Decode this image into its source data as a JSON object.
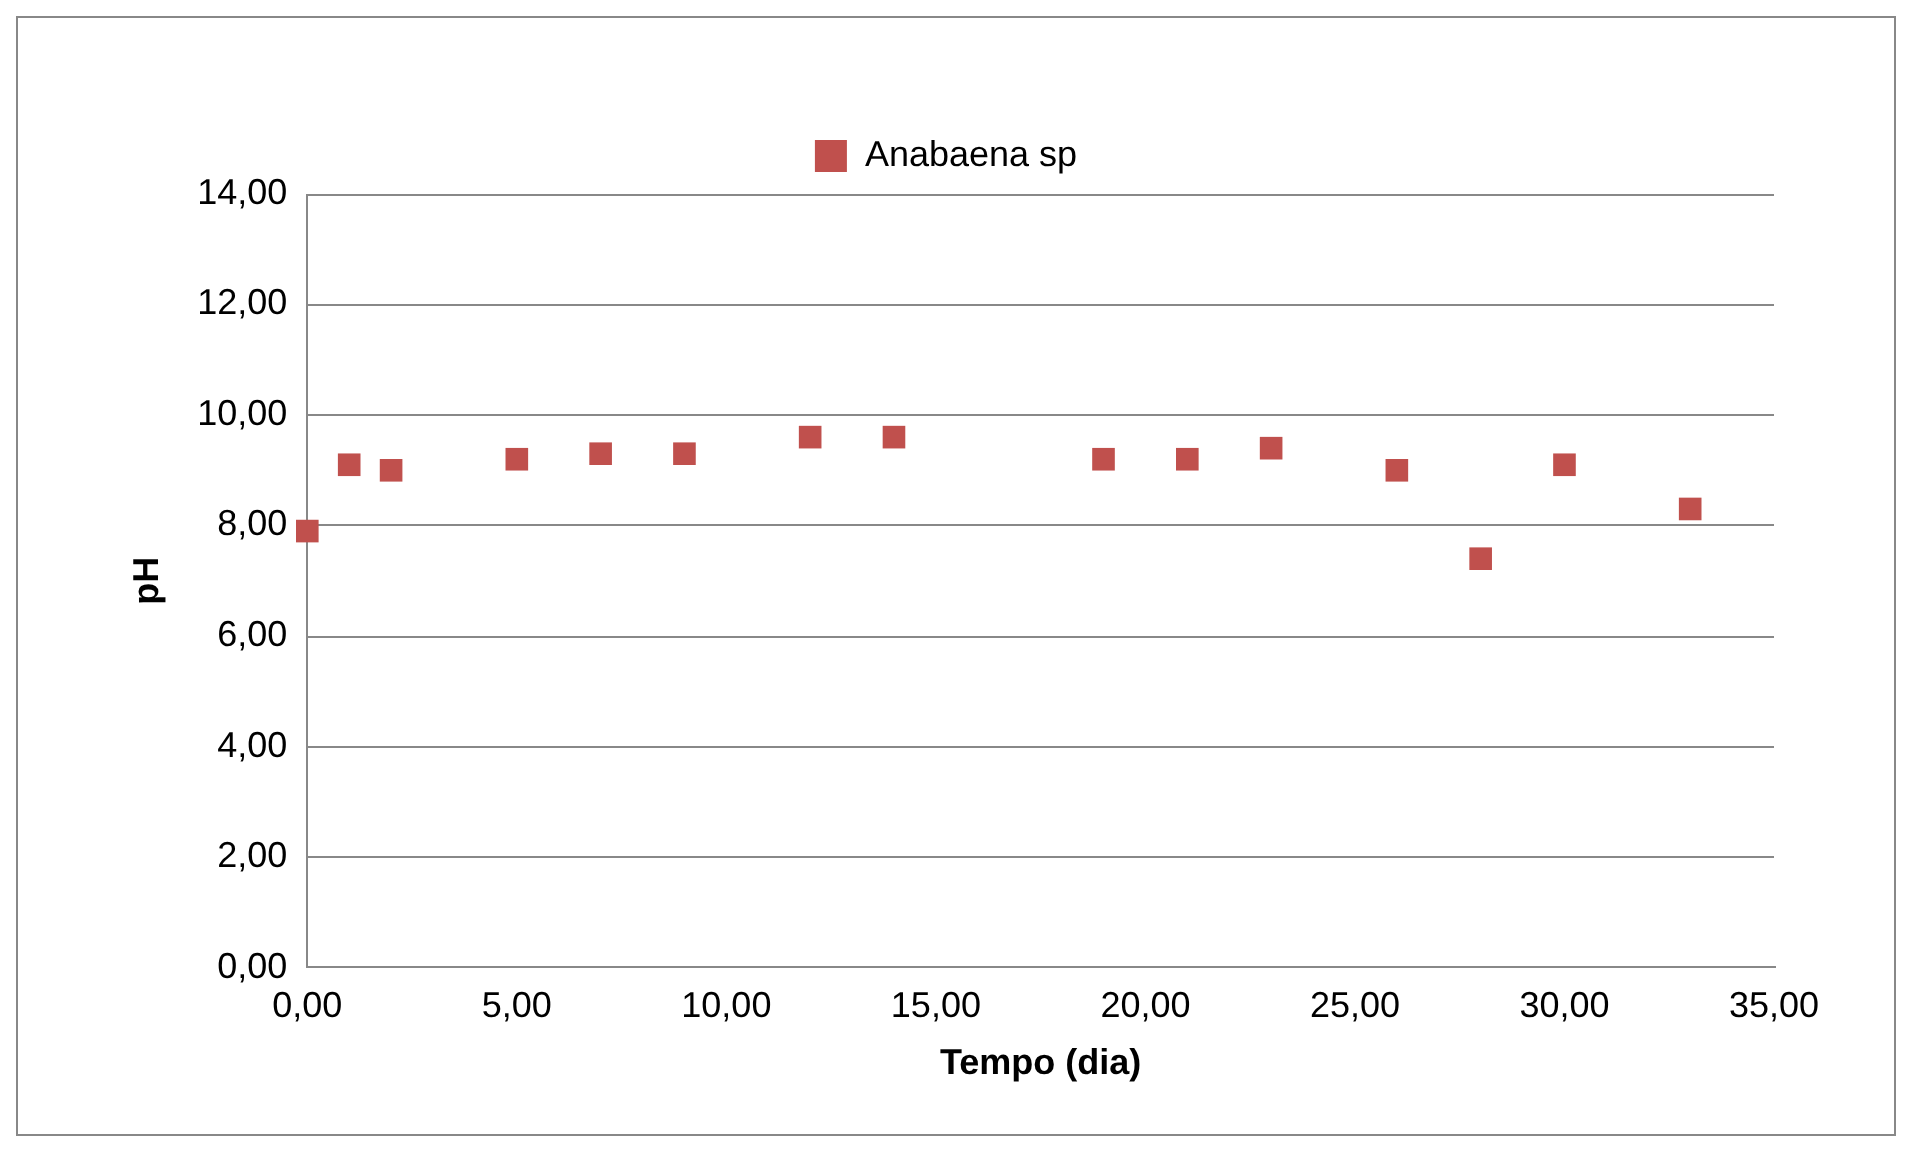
{
  "chart_data": {
    "type": "scatter",
    "xlabel": "Tempo (dia)",
    "ylabel": "pH",
    "x": [
      0,
      1,
      2,
      5,
      7,
      9,
      12,
      14,
      19,
      21,
      23,
      26,
      28,
      30,
      33
    ],
    "series": [
      {
        "name": "Anabaena sp",
        "color": "#c0504d",
        "values": [
          7.9,
          9.1,
          9.0,
          9.2,
          9.3,
          9.3,
          9.6,
          9.6,
          9.2,
          9.2,
          9.4,
          9.0,
          7.4,
          9.1,
          8.3
        ]
      }
    ],
    "xlim": [
      0,
      35
    ],
    "xticks": [
      {
        "value": 0,
        "label": "0,00"
      },
      {
        "value": 5,
        "label": "5,00"
      },
      {
        "value": 10,
        "label": "10,00"
      },
      {
        "value": 15,
        "label": "15,00"
      },
      {
        "value": 20,
        "label": "20,00"
      },
      {
        "value": 25,
        "label": "25,00"
      },
      {
        "value": 30,
        "label": "30,00"
      },
      {
        "value": 35,
        "label": "35,00"
      }
    ],
    "ylim": [
      0,
      14
    ],
    "yticks": [
      {
        "value": 0,
        "label": "0,00"
      },
      {
        "value": 2,
        "label": "2,00"
      },
      {
        "value": 4,
        "label": "4,00"
      },
      {
        "value": 6,
        "label": "6,00"
      },
      {
        "value": 8,
        "label": "8,00"
      },
      {
        "value": 10,
        "label": "10,00"
      },
      {
        "value": 12,
        "label": "12,00"
      },
      {
        "value": 14,
        "label": "14,00"
      }
    ],
    "grid": "y",
    "legend": "top",
    "marker": "square"
  }
}
